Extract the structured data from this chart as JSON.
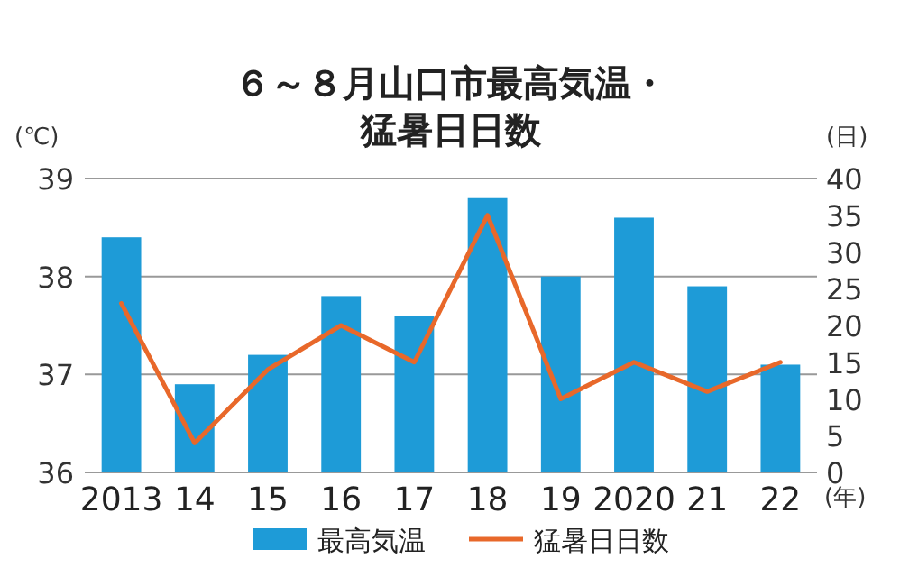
{
  "chart_data": {
    "type": "bar",
    "title": "６～８月山口市最高気温・猛暑日日数",
    "ylabel": "(℃)",
    "y2label": "(日)",
    "xlabel": "(年)",
    "categories": [
      "2013",
      "14",
      "15",
      "16",
      "17",
      "18",
      "19",
      "2020",
      "21",
      "22"
    ],
    "series": [
      {
        "name": "最高気温",
        "color": "#1e9bd7",
        "values": [
          38.4,
          36.9,
          37.2,
          37.8,
          37.6,
          38.8,
          38.0,
          38.6,
          37.9,
          37.1
        ]
      },
      {
        "name": "猛暑日日数",
        "type": "line",
        "axis": "y2",
        "color": "#e8682a",
        "values": [
          23,
          4,
          14,
          20,
          15,
          35,
          10,
          15,
          11,
          15
        ]
      }
    ],
    "ylim": [
      36,
      39
    ],
    "yticks": [
      36,
      37,
      38,
      39
    ],
    "y2lim": [
      0,
      40
    ],
    "y2ticks": [
      0,
      5,
      10,
      15,
      20,
      25,
      30,
      35,
      40
    ],
    "grid": "y",
    "legend": "bottom",
    "marker": "none",
    "line_style": "solid"
  }
}
